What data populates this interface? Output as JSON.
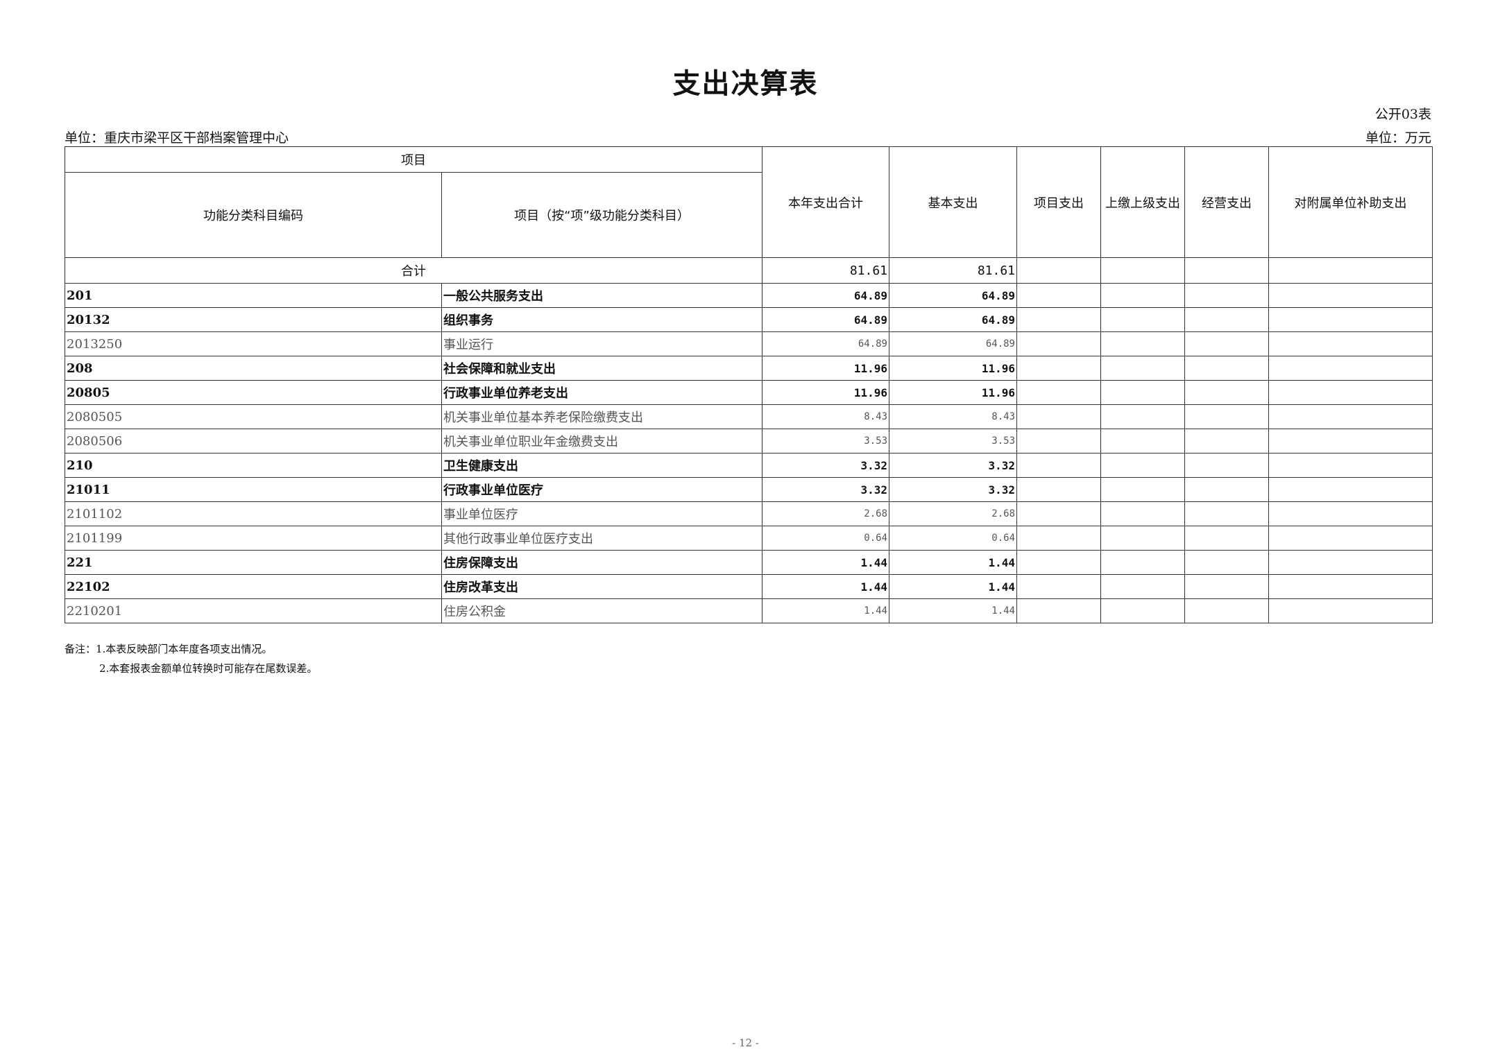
{
  "title": "支出决算表",
  "table_no": "公开03表",
  "unit_org": "单位：重庆市梁平区干部档案管理中心",
  "unit_currency": "单位：万元",
  "headers": {
    "item_group": "项目",
    "code": "功能分类科目编码",
    "name": "项目（按“项”级功能分类科目）",
    "total": "本年支出合计",
    "basic": "基本支出",
    "project": "项目支出",
    "upper": "上缴上级支出",
    "business": "经营支出",
    "subsidy": "对附属单位补助支出"
  },
  "total_row": {
    "label": "合计",
    "total": "81.61",
    "basic": "81.61"
  },
  "rows": [
    {
      "code": "201",
      "name": "一般公共服务支出",
      "total": "64.89",
      "basic": "64.89",
      "level": "bold"
    },
    {
      "code": "20132",
      "name": "组织事务",
      "total": "64.89",
      "basic": "64.89",
      "level": "bold"
    },
    {
      "code": "2013250",
      "name": "事业运行",
      "total": "64.89",
      "basic": "64.89",
      "level": "light"
    },
    {
      "code": "208",
      "name": "社会保障和就业支出",
      "total": "11.96",
      "basic": "11.96",
      "level": "bold"
    },
    {
      "code": "20805",
      "name": "行政事业单位养老支出",
      "total": "11.96",
      "basic": "11.96",
      "level": "bold"
    },
    {
      "code": "2080505",
      "name": "机关事业单位基本养老保险缴费支出",
      "total": "8.43",
      "basic": "8.43",
      "level": "light"
    },
    {
      "code": "2080506",
      "name": "机关事业单位职业年金缴费支出",
      "total": "3.53",
      "basic": "3.53",
      "level": "light"
    },
    {
      "code": "210",
      "name": "卫生健康支出",
      "total": "3.32",
      "basic": "3.32",
      "level": "bold"
    },
    {
      "code": "21011",
      "name": "行政事业单位医疗",
      "total": "3.32",
      "basic": "3.32",
      "level": "bold"
    },
    {
      "code": "2101102",
      "name": "事业单位医疗",
      "total": "2.68",
      "basic": "2.68",
      "level": "light"
    },
    {
      "code": "2101199",
      "name": "其他行政事业单位医疗支出",
      "total": "0.64",
      "basic": "0.64",
      "level": "light"
    },
    {
      "code": "221",
      "name": "住房保障支出",
      "total": "1.44",
      "basic": "1.44",
      "level": "bold"
    },
    {
      "code": "22102",
      "name": "住房改革支出",
      "total": "1.44",
      "basic": "1.44",
      "level": "bold"
    },
    {
      "code": "2210201",
      "name": "住房公积金",
      "total": "1.44",
      "basic": "1.44",
      "level": "light"
    }
  ],
  "notes": [
    "备注：1.本表反映部门本年度各项支出情况。",
    "2.本套报表金额单位转换时可能存在尾数误差。"
  ],
  "page_number": "- 12 -"
}
